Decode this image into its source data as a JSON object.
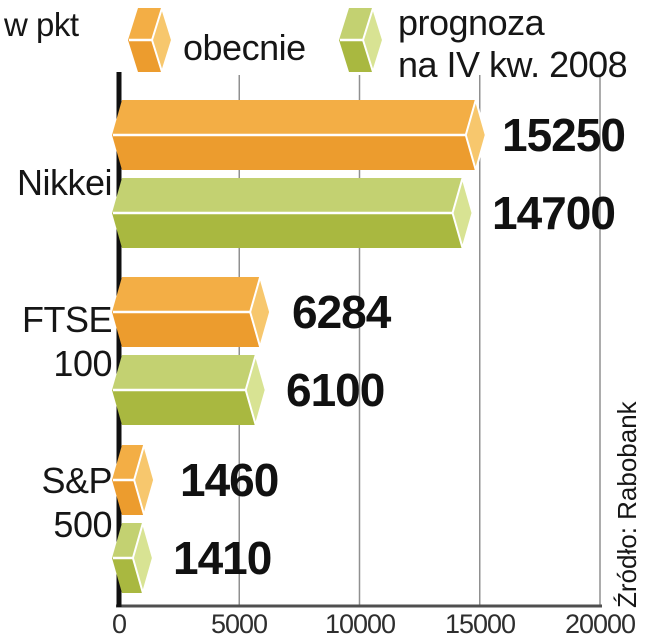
{
  "header": {
    "unit_label": "w pkt",
    "legend_current_label": "obecnie",
    "legend_forecast_line1": "prognoza",
    "legend_forecast_line2": "na IV kw. 2008"
  },
  "source": {
    "text": "Źródło: Rabobank"
  },
  "chart_data": {
    "type": "bar",
    "orientation": "horizontal",
    "title": "",
    "unit": "w pkt",
    "categories": [
      "Nikkei",
      "FTSE 100",
      "S&P 500"
    ],
    "categories_display": [
      [
        "Nikkei"
      ],
      [
        "FTSE",
        "100"
      ],
      [
        "S&P",
        "500"
      ]
    ],
    "series": [
      {
        "name": "obecnie",
        "values": [
          15250,
          6284,
          1460
        ],
        "colors": {
          "top": "#f3ae45",
          "front": "#ec9c2e",
          "cap": "#f7c76d"
        }
      },
      {
        "name": "prognoza na IV kw. 2008",
        "values": [
          14700,
          6100,
          1410
        ],
        "colors": {
          "top": "#c3d171",
          "front": "#a9b840",
          "cap": "#d8e393"
        }
      }
    ],
    "xlim": [
      0,
      20000
    ],
    "tick_values": [
      0,
      5000,
      10000,
      15000,
      20000
    ],
    "tick_labels": [
      "0",
      "5000",
      "10000",
      "15000",
      "20000"
    ],
    "grid": true,
    "legend_position": "top",
    "axis_color": "#101010",
    "grid_color": "#909090"
  }
}
